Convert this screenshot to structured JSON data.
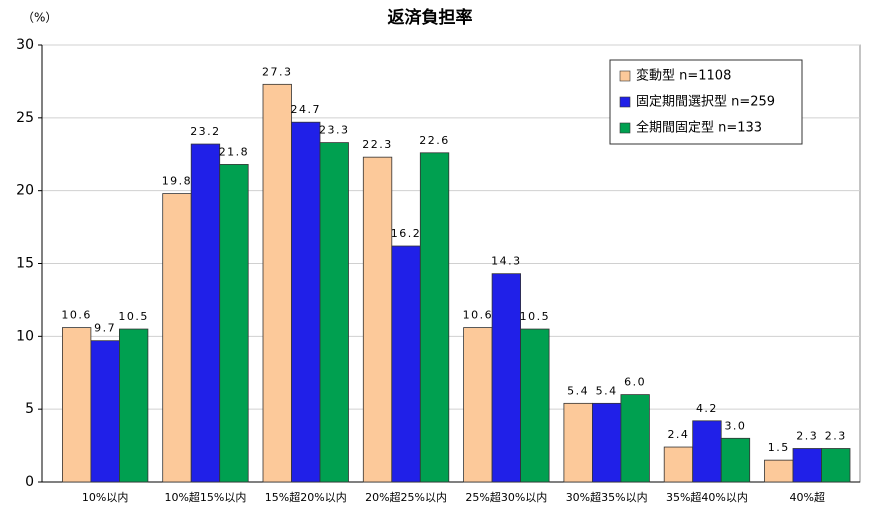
{
  "chart_data": {
    "type": "bar",
    "title": "返済負担率",
    "y_label": "（%）",
    "categories": [
      "10%以内",
      "10%超15%以内",
      "15%超20%以内",
      "20%超25%以内",
      "25%超30%以内",
      "30%超35%以内",
      "35%超40%以内",
      "40%超"
    ],
    "series": [
      {
        "name": "変動型 n=1108",
        "color": "#fcc99a",
        "values": [
          10.6,
          19.8,
          27.3,
          22.3,
          10.6,
          5.4,
          2.4,
          1.5
        ],
        "value_labels": [
          "10.6",
          "19.8",
          "27.3",
          "22.3",
          "10.6",
          "5.4",
          "2.4",
          "1.5"
        ]
      },
      {
        "name": "固定期間選択型 n=259",
        "color": "#2020e8",
        "values": [
          9.7,
          23.2,
          24.7,
          16.2,
          14.3,
          5.4,
          4.2,
          2.3
        ],
        "value_labels": [
          "9.7",
          "23.2",
          "24.7",
          "16.2",
          "14.3",
          "5.4",
          "4.2",
          "2.3"
        ]
      },
      {
        "name": "全期間固定型 n=133",
        "color": "#00a050",
        "values": [
          10.5,
          21.8,
          23.3,
          22.6,
          10.5,
          6.0,
          3.0,
          2.3
        ],
        "value_labels": [
          "10.5",
          "21.8",
          "23.3",
          "22.6",
          "10.5",
          "6.0",
          "3.0",
          "2.3"
        ]
      }
    ],
    "ylim": [
      0,
      30
    ],
    "yticks": [
      0,
      5,
      10,
      15,
      20,
      25,
      30
    ],
    "grid": true,
    "legend": "upper right"
  }
}
